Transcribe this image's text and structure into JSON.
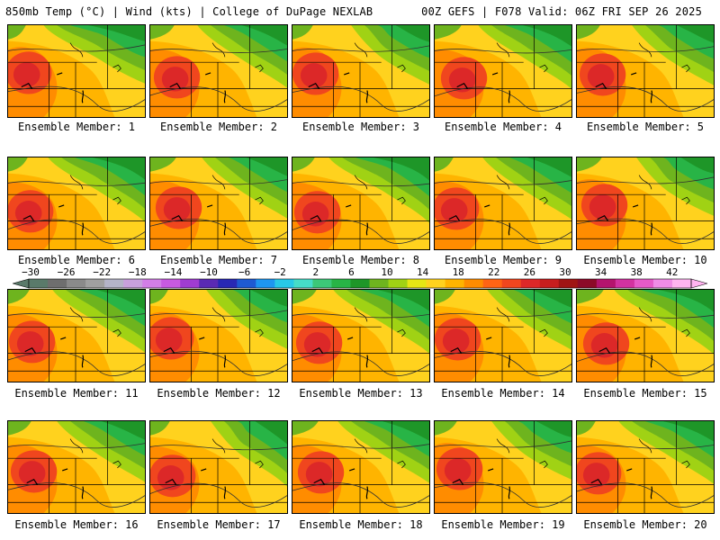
{
  "header": {
    "left": "850mb Temp (°C) | Wind (kts) | College of DuPage NEXLAB",
    "right": "00Z GEFS | F078 Valid: 06Z FRI SEP 26 2025"
  },
  "members": [
    "Ensemble Member: 1",
    "Ensemble Member: 2",
    "Ensemble Member: 3",
    "Ensemble Member: 4",
    "Ensemble Member: 5",
    "Ensemble Member: 6",
    "Ensemble Member: 7",
    "Ensemble Member: 8",
    "Ensemble Member: 9",
    "Ensemble Member: 10",
    "Ensemble Member: 11",
    "Ensemble Member: 12",
    "Ensemble Member: 13",
    "Ensemble Member: 14",
    "Ensemble Member: 15",
    "Ensemble Member: 16",
    "Ensemble Member: 17",
    "Ensemble Member: 18",
    "Ensemble Member: 19",
    "Ensemble Member: 20"
  ],
  "colorbar": {
    "labels": [
      "−30",
      "−26",
      "−22",
      "−18",
      "−14",
      "−10",
      "−6",
      "−2",
      "2",
      "6",
      "10",
      "14",
      "18",
      "22",
      "26",
      "30",
      "34",
      "38",
      "42"
    ],
    "colors": [
      "#5a7a6a",
      "#6e6e6e",
      "#8a8a8a",
      "#a0a0a0",
      "#b4b4c8",
      "#c8a0dc",
      "#d27ee6",
      "#c85ae0",
      "#a03cd2",
      "#5a2ab4",
      "#2828b4",
      "#1e5ad2",
      "#1e96f0",
      "#28c8e6",
      "#46dcc8",
      "#3cc878",
      "#28b446",
      "#1e9628",
      "#6eb41e",
      "#a0d214",
      "#e6e614",
      "#ffd21e",
      "#ffb400",
      "#ff8c00",
      "#ff6414",
      "#f0461e",
      "#dc2828",
      "#c81e1e",
      "#a01414",
      "#8c0a28",
      "#b4146e",
      "#d232a0",
      "#e65ac8",
      "#f08ce6",
      "#ffb4f0"
    ]
  },
  "map_colors": {
    "deep_green": "#1e9628",
    "green": "#28b446",
    "light_green": "#6eb41e",
    "yellow_green": "#a0d214",
    "yellow": "#e6e614",
    "gold": "#ffd21e",
    "orange": "#ffb400",
    "dark_orange": "#ff8c00",
    "red_orange": "#f0461e",
    "red": "#dc2828",
    "teal": "#46dcc8",
    "cyan": "#28c8e6"
  }
}
